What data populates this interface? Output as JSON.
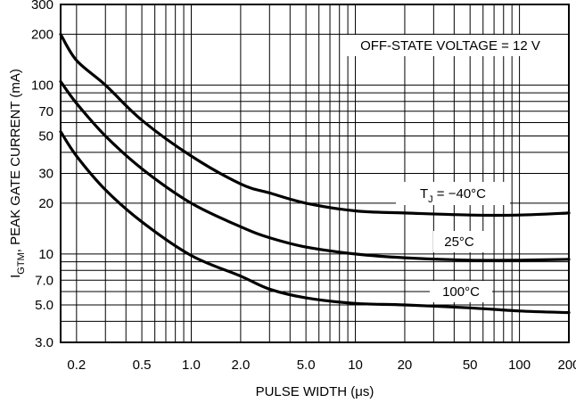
{
  "chart_data": {
    "type": "line",
    "xlabel": "PULSE WIDTH (μs)",
    "ylabel": "I",
    "ylabel_sub": "GTM",
    "ylabel_rest": ", PEAK GATE CURRENT (mA)",
    "x_scale": "log",
    "y_scale": "log",
    "xlim": [
      0.16,
      200
    ],
    "ylim": [
      3,
      300
    ],
    "grid": true,
    "x_ticks": [
      {
        "value": 0.2,
        "label": "0.2"
      },
      {
        "value": 0.5,
        "label": "0.5"
      },
      {
        "value": 1,
        "label": "1.0"
      },
      {
        "value": 2,
        "label": "2.0"
      },
      {
        "value": 5,
        "label": "5.0"
      },
      {
        "value": 10,
        "label": "10"
      },
      {
        "value": 20,
        "label": "20"
      },
      {
        "value": 50,
        "label": "50"
      },
      {
        "value": 100,
        "label": "100"
      },
      {
        "value": 200,
        "label": "200"
      }
    ],
    "y_ticks": [
      {
        "value": 3,
        "label": "3.0"
      },
      {
        "value": 5,
        "label": "5.0"
      },
      {
        "value": 7,
        "label": "7.0"
      },
      {
        "value": 10,
        "label": "10"
      },
      {
        "value": 20,
        "label": "20"
      },
      {
        "value": 30,
        "label": "30"
      },
      {
        "value": 50,
        "label": "50"
      },
      {
        "value": 70,
        "label": "70"
      },
      {
        "value": 100,
        "label": "100"
      },
      {
        "value": 200,
        "label": "200"
      },
      {
        "value": 300,
        "label": "300"
      }
    ],
    "x_grid": [
      0.2,
      0.3,
      0.4,
      0.5,
      0.6,
      0.7,
      0.8,
      0.9,
      1,
      2,
      3,
      4,
      5,
      6,
      7,
      8,
      9,
      10,
      20,
      30,
      40,
      50,
      60,
      70,
      80,
      90,
      100,
      200
    ],
    "y_grid": [
      3,
      4,
      5,
      6,
      7,
      8,
      9,
      10,
      20,
      30,
      40,
      50,
      60,
      70,
      80,
      90,
      100,
      200,
      300
    ],
    "series": [
      {
        "name": "T_J = −40°C",
        "label_main": "T",
        "label_sub": "J",
        "label_rest": " = −40°C",
        "points": [
          [
            0.16,
            200
          ],
          [
            0.2,
            140
          ],
          [
            0.3,
            100
          ],
          [
            0.5,
            62
          ],
          [
            1,
            38
          ],
          [
            2,
            26
          ],
          [
            3,
            23
          ],
          [
            5,
            20
          ],
          [
            10,
            18
          ],
          [
            20,
            17.5
          ],
          [
            50,
            17
          ],
          [
            100,
            17
          ],
          [
            200,
            17.5
          ]
        ]
      },
      {
        "name": "25°C",
        "label_main": "25°C",
        "label_sub": "",
        "label_rest": "",
        "points": [
          [
            0.16,
            105
          ],
          [
            0.2,
            78
          ],
          [
            0.3,
            50
          ],
          [
            0.5,
            32
          ],
          [
            1,
            20
          ],
          [
            2,
            14.5
          ],
          [
            3,
            12.5
          ],
          [
            5,
            11
          ],
          [
            10,
            10
          ],
          [
            20,
            9.5
          ],
          [
            50,
            9.2
          ],
          [
            100,
            9.2
          ],
          [
            200,
            9.3
          ]
        ]
      },
      {
        "name": "100°C",
        "label_main": "100°C",
        "label_sub": "",
        "label_rest": "",
        "points": [
          [
            0.16,
            53
          ],
          [
            0.2,
            38
          ],
          [
            0.3,
            24
          ],
          [
            0.5,
            15.5
          ],
          [
            1,
            9.8
          ],
          [
            2,
            7.4
          ],
          [
            3,
            6.2
          ],
          [
            5,
            5.5
          ],
          [
            10,
            5.1
          ],
          [
            20,
            5
          ],
          [
            50,
            4.8
          ],
          [
            100,
            4.6
          ],
          [
            200,
            4.5
          ]
        ]
      }
    ],
    "annotations": [
      {
        "text": "OFF-STATE VOLTAGE = 12 V"
      }
    ]
  }
}
